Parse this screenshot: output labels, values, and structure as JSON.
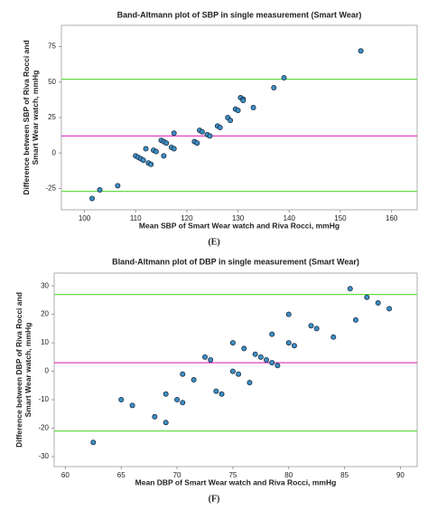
{
  "chart_data": [
    {
      "type": "scatter",
      "title": "Band-Altmann plot of SBP in single measurement (Smart Wear)",
      "x_label": "Mean SBP of Smart Wear watch and Riva Rocci, mmHg",
      "y_label": "Difference between SBP of Riva Rocci and Smart Wear watch, mmHg",
      "label": "(E)",
      "xlim": [
        95.5,
        165
      ],
      "ylim": [
        -40,
        90
      ],
      "xticks": [
        100,
        110,
        120,
        130,
        140,
        150,
        160
      ],
      "yticks": [
        -25,
        0,
        25,
        50,
        75
      ],
      "color": "#3d8fc4",
      "x": [
        101.5,
        103,
        106.5,
        110,
        110.5,
        111,
        111.5,
        112,
        112.5,
        113,
        113.5,
        114,
        115,
        115.5,
        115.5,
        116,
        117,
        117.5,
        117.5,
        121.5,
        122,
        122.5,
        123,
        124,
        124.5,
        126,
        126.5,
        128,
        128.5,
        129.5,
        130,
        130.5,
        131,
        131,
        133,
        137,
        139,
        154
      ],
      "values": [
        -32,
        -26,
        -23,
        -2,
        -3,
        -4,
        -5,
        3,
        -7,
        -8,
        2,
        1,
        9,
        -2,
        8,
        7,
        4,
        3,
        14,
        8,
        7,
        16,
        15,
        13,
        12,
        19,
        18,
        25,
        23,
        31,
        30,
        39,
        38,
        37,
        32,
        46,
        53,
        72
      ],
      "hlines": [
        {
          "value": 52,
          "color": "#66dd44"
        },
        {
          "value": 12,
          "color": "#e040c0"
        },
        {
          "value": -27,
          "color": "#66dd44"
        }
      ]
    },
    {
      "type": "scatter",
      "title": "Bland-Altmann plot of DBP in single measurement (Smart Wear)",
      "x_label": "Mean DBP of Smart Wear watch and Riva Rocci, mmHg",
      "y_label": "Difference between DBP of Riva Rocci and Smart Wear watch, mmHg",
      "label": "(F)",
      "xlim": [
        59,
        91.5
      ],
      "ylim": [
        -33.5,
        34.5
      ],
      "xticks": [
        60,
        65,
        70,
        75,
        80,
        85,
        90
      ],
      "yticks": [
        -30,
        -20,
        -10,
        0,
        10,
        20,
        30
      ],
      "color": "#3d8fc4",
      "x": [
        62.5,
        65,
        66,
        68,
        69,
        69,
        70,
        70.5,
        70.5,
        71.5,
        72.5,
        73,
        73.5,
        74,
        75,
        75,
        75.5,
        76,
        76.5,
        77,
        77.5,
        78,
        78.5,
        78.5,
        79,
        80,
        80,
        80.5,
        82,
        82.5,
        84,
        85.5,
        86,
        87,
        88,
        89
      ],
      "values": [
        -25,
        -10,
        -12,
        -16,
        -8,
        -18,
        -10,
        -1,
        -11,
        -3,
        5,
        4,
        -7,
        -8,
        10,
        0,
        -1,
        8,
        -4,
        6,
        5,
        4,
        13,
        3,
        2,
        20,
        10,
        9,
        16,
        15,
        12,
        29,
        18,
        26,
        24,
        22
      ],
      "hlines": [
        {
          "value": 27,
          "color": "#66dd44"
        },
        {
          "value": 3,
          "color": "#e040c0"
        },
        {
          "value": -21,
          "color": "#66dd44"
        }
      ]
    }
  ]
}
